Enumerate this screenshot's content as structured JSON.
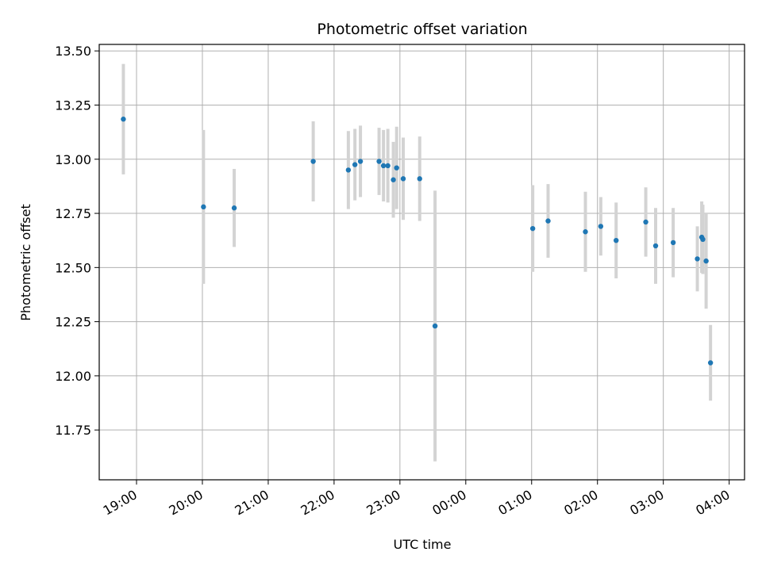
{
  "chart_data": {
    "type": "scatter",
    "title": "Photometric offset variation",
    "xlabel": "UTC time",
    "ylabel": "Photometric offset",
    "grid": true,
    "legend": "none",
    "colors": {
      "point": "#1f77b4",
      "errorbar": "#d3d3d3",
      "grid": "#b0b0b0"
    },
    "x_ticks": [
      "19:00",
      "20:00",
      "21:00",
      "22:00",
      "23:00",
      "00:00",
      "01:00",
      "02:00",
      "03:00",
      "04:00"
    ],
    "y_ticks": [
      "11.75",
      "12.00",
      "12.25",
      "12.50",
      "12.75",
      "13.00",
      "13.25",
      "13.50"
    ],
    "xlim": [
      "18:26",
      "04:14"
    ],
    "ylim": [
      11.52,
      13.53
    ],
    "points": [
      {
        "time": "18:48",
        "value": 13.185,
        "err": 0.255
      },
      {
        "time": "20:01",
        "value": 12.78,
        "err": 0.355
      },
      {
        "time": "20:29",
        "value": 12.775,
        "err": 0.18
      },
      {
        "time": "21:41",
        "value": 12.99,
        "err": 0.185
      },
      {
        "time": "22:13",
        "value": 12.95,
        "err": 0.18
      },
      {
        "time": "22:19",
        "value": 12.975,
        "err": 0.165
      },
      {
        "time": "22:24",
        "value": 12.99,
        "err": 0.165
      },
      {
        "time": "22:41",
        "value": 12.99,
        "err": 0.155
      },
      {
        "time": "22:45",
        "value": 12.97,
        "err": 0.165
      },
      {
        "time": "22:49",
        "value": 12.97,
        "err": 0.17
      },
      {
        "time": "22:54",
        "value": 12.905,
        "err": 0.175
      },
      {
        "time": "22:57",
        "value": 12.96,
        "err": 0.19
      },
      {
        "time": "23:03",
        "value": 12.91,
        "err": 0.19
      },
      {
        "time": "23:18",
        "value": 12.91,
        "err": 0.195
      },
      {
        "time": "23:32",
        "value": 12.23,
        "err": 0.625
      },
      {
        "time": "01:01",
        "value": 12.68,
        "err": 0.2
      },
      {
        "time": "01:15",
        "value": 12.715,
        "err": 0.17
      },
      {
        "time": "01:49",
        "value": 12.665,
        "err": 0.185
      },
      {
        "time": "02:03",
        "value": 12.69,
        "err": 0.135
      },
      {
        "time": "02:17",
        "value": 12.625,
        "err": 0.175
      },
      {
        "time": "02:44",
        "value": 12.71,
        "err": 0.16
      },
      {
        "time": "02:53",
        "value": 12.6,
        "err": 0.175
      },
      {
        "time": "03:09",
        "value": 12.615,
        "err": 0.16
      },
      {
        "time": "03:31",
        "value": 12.54,
        "err": 0.15
      },
      {
        "time": "03:35",
        "value": 12.64,
        "err": 0.165
      },
      {
        "time": "03:36",
        "value": 12.63,
        "err": 0.16
      },
      {
        "time": "03:39",
        "value": 12.53,
        "err": 0.22
      },
      {
        "time": "03:43",
        "value": 12.06,
        "err": 0.175
      }
    ]
  }
}
